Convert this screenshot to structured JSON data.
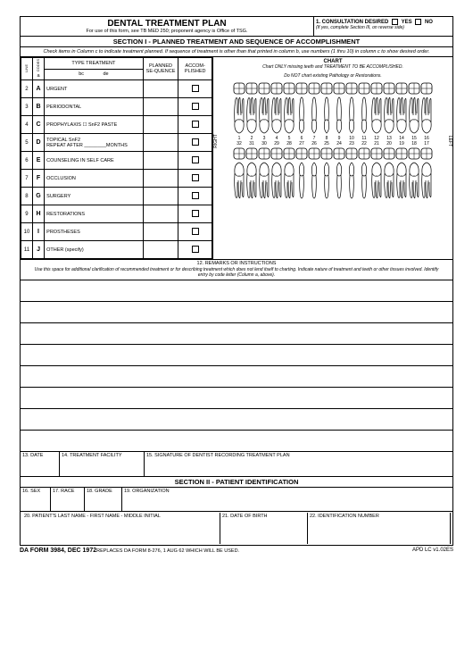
{
  "header": {
    "title": "DENTAL TREATMENT PLAN",
    "subtitle": "For use of this form, see TB MED 250; proponent agency is Office of TSG.",
    "consult_label": "1. CONSULTATION DESIRED",
    "yes": "YES",
    "no": "NO",
    "consult_note": "(If yes, complete Section III, on reverse side)"
  },
  "section1": {
    "title": "SECTION I - PLANNED TREATMENT AND SEQUENCE OF ACCOMPLISHMENT",
    "note": "Check items in Column c to indicate treatment planned.  If sequence of treatment is other than that printed in column b, use numbers (1 thru 10) in column c to show desired order."
  },
  "cols": {
    "line": "LINE",
    "codes": "CODES",
    "a": "a",
    "type": "TYPE TREATMENT",
    "bc": "bc",
    "de": "de",
    "seq": "PLANNED SE-QUENCE",
    "acc": "ACCOM-PLISHED"
  },
  "rows": [
    {
      "n": "2",
      "c": "A",
      "t": "URGENT"
    },
    {
      "n": "3",
      "c": "B",
      "t": "PERIODONTAL"
    },
    {
      "n": "4",
      "c": "C",
      "t": "PROPHYLAXIS   ☐  SnF2  PASTE"
    },
    {
      "n": "5",
      "c": "D",
      "t": "TOPICAL  SnF2\nREPEAT AFTER  ________MONTHS"
    },
    {
      "n": "6",
      "c": "E",
      "t": "COUNSELING IN SELF CARE"
    },
    {
      "n": "7",
      "c": "F",
      "t": "OCCLUSION"
    },
    {
      "n": "8",
      "c": "G",
      "t": "SURGERY"
    },
    {
      "n": "9",
      "c": "H",
      "t": "RESTORATIONS"
    },
    {
      "n": "10",
      "c": "I",
      "t": "PROSTHESES"
    },
    {
      "n": "11",
      "c": "J",
      "t": "OTHER  (specify)"
    }
  ],
  "chart": {
    "title": "CHART",
    "sub1": "Chart ONLY missing teeth and TREATMENT TO BE ACCOMPLISHED.",
    "sub2": "Do NOT  chart existing Pathology or Restorations.",
    "right": "RIGHT",
    "left": "LEFT",
    "upper_nums": [
      "1",
      "2",
      "3",
      "4",
      "5",
      "6",
      "7",
      "8",
      "9",
      "10",
      "11",
      "12",
      "13",
      "14",
      "15",
      "16"
    ],
    "lower_nums": [
      "32",
      "31",
      "30",
      "29",
      "28",
      "27",
      "26",
      "25",
      "24",
      "23",
      "22",
      "21",
      "20",
      "19",
      "18",
      "17"
    ]
  },
  "remarks": {
    "hdr": "12. REMARKS OR INSTRUCTIONS",
    "note": "Use this space for additional clarification of recommended treatment or for describing treatment which does not lend itself to charting. Indicate nature of treatment and teeth or other tissues involved.  Identify entry by code letter (Column a, above)."
  },
  "sig": {
    "date": "13. DATE",
    "fac": "14. TREATMENT FACILITY",
    "dent": "15. SIGNATURE OF DENTIST RECORDING TREATMENT PLAN"
  },
  "section2": {
    "title": "SECTION II - PATIENT IDENTIFICATION",
    "sex": "16. SEX",
    "race": "17. RACE",
    "grade": "18. GRADE",
    "org": "19. ORGANIZATION",
    "name": "20. PATIENT'S LAST NAME - FIRST NAME - MIDDLE INITIAL",
    "dob": "21. DATE OF BIRTH",
    "idnum": "22. IDENTIFICATION NUMBER"
  },
  "footer": {
    "form": "DA FORM 3984, DEC 1972",
    "replaces": "REPLACES DA FORM 8-276, 1 AUG 62 WHICH WILL BE USED.",
    "ver": "APD LC v1.02ES"
  }
}
